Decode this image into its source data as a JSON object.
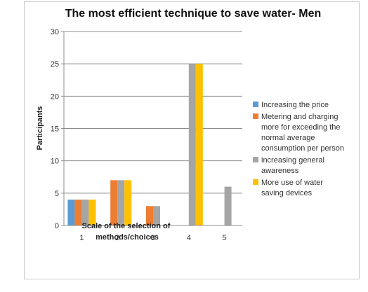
{
  "chart_data": {
    "type": "bar",
    "title": "The most efficient technique to save water- Men",
    "ylabel": "Participants",
    "xlabel_lines": [
      "Scale of the selection of",
      "methods/choices"
    ],
    "categories": [
      "1",
      "2",
      "3",
      "4",
      "5"
    ],
    "ylim": [
      0,
      30
    ],
    "yticks": [
      0,
      5,
      10,
      15,
      20,
      25,
      30
    ],
    "grid": true,
    "legend_position": "right",
    "series": [
      {
        "name": "Increasing the price",
        "color": "#5b9bd5",
        "values": [
          4,
          0,
          0,
          0,
          0
        ]
      },
      {
        "name": "Metering and charging more for exceeding the normal average consumption per person",
        "color": "#ed7d31",
        "values": [
          4,
          7,
          3,
          0,
          0
        ]
      },
      {
        "name": "increasing general awareness",
        "color": "#a5a5a5",
        "values": [
          4,
          7,
          3,
          25,
          6
        ]
      },
      {
        "name": "More use of water saving devices",
        "color": "#ffc000",
        "values": [
          4,
          7,
          0,
          25,
          0
        ]
      }
    ],
    "legend_lines": [
      [
        "Increasing the price"
      ],
      [
        "Metering and charging",
        "more for exceeding the",
        "normal average",
        "consumption per person"
      ],
      [
        "increasing general",
        "awareness"
      ],
      [
        "More use of water",
        "saving devices"
      ]
    ]
  }
}
